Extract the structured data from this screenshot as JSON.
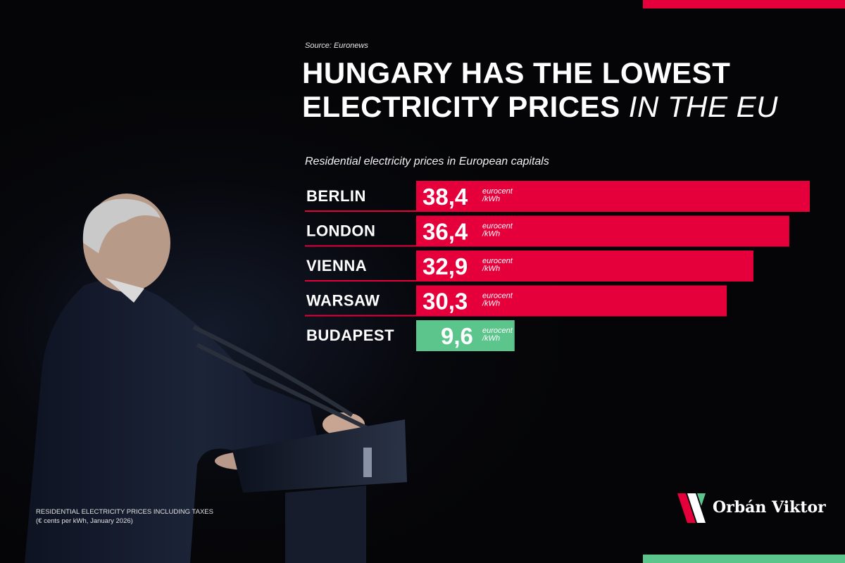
{
  "source": "Source: Euronews",
  "headline": {
    "line1": "HUNGARY HAS THE LOWEST",
    "line2_bold": "ELECTRICITY PRICES",
    "line2_italic": "IN THE EU"
  },
  "subtitle": "Residential electricity prices in European capitals",
  "footnote": {
    "line1": "RESIDENTIAL ELECTRICITY PRICES INCLUDING TAXES",
    "line2": "(€ cents per kWh, January 2026)"
  },
  "brand": {
    "name": "Orbán Viktor"
  },
  "colors": {
    "red": "#e5003c",
    "green": "#5bc58c",
    "background": "#050507"
  },
  "chart_data": {
    "type": "bar",
    "orientation": "horizontal",
    "categories": [
      "BERLIN",
      "LONDON",
      "VIENNA",
      "WARSAW",
      "BUDAPEST"
    ],
    "values": [
      38.4,
      36.4,
      32.9,
      30.3,
      9.6
    ],
    "value_labels": [
      "38,4",
      "36,4",
      "32,9",
      "30,3",
      "9,6"
    ],
    "unit_line1": "eurocent",
    "unit_line2": "/kWh",
    "highlight_category": "BUDAPEST",
    "title": "Residential electricity prices in European capitals",
    "grid": false
  }
}
